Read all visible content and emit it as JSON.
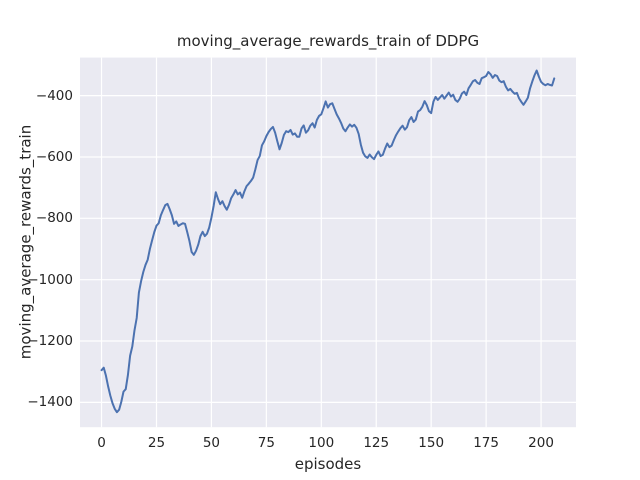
{
  "chart_data": {
    "type": "line",
    "title": "moving_average_rewards_train of DDPG",
    "xlabel": "episodes",
    "ylabel": "moving_average_rewards_train",
    "x_ticks": [
      0,
      25,
      50,
      75,
      100,
      125,
      150,
      175,
      200
    ],
    "y_ticks": [
      -400,
      -600,
      -800,
      -1000,
      -1200,
      -1400
    ],
    "xlim": [
      -9.8,
      215.9
    ],
    "ylim": [
      -1481,
      -276
    ],
    "grid": true,
    "legend": null,
    "colors": {
      "line": "#4c72b0",
      "plot_background": "#eaeaf2",
      "grid": "#ffffff",
      "figure_background": "#ffffff",
      "text": "#262626"
    },
    "series": [
      {
        "name": "moving_average_rewards_train",
        "color": "#4c72b0",
        "x_start": 0,
        "x_step": 1,
        "values": [
          -1295,
          -1287,
          -1313,
          -1348,
          -1378,
          -1403,
          -1421,
          -1432,
          -1424,
          -1398,
          -1365,
          -1357,
          -1311,
          -1248,
          -1218,
          -1165,
          -1125,
          -1042,
          -1005,
          -975,
          -952,
          -935,
          -900,
          -872,
          -845,
          -824,
          -816,
          -790,
          -773,
          -757,
          -753,
          -770,
          -790,
          -818,
          -810,
          -825,
          -820,
          -816,
          -818,
          -845,
          -874,
          -910,
          -919,
          -906,
          -886,
          -858,
          -844,
          -858,
          -850,
          -830,
          -798,
          -760,
          -715,
          -737,
          -754,
          -744,
          -760,
          -772,
          -756,
          -734,
          -722,
          -708,
          -722,
          -716,
          -733,
          -712,
          -695,
          -687,
          -678,
          -667,
          -640,
          -610,
          -597,
          -562,
          -549,
          -532,
          -519,
          -509,
          -502,
          -521,
          -549,
          -575,
          -554,
          -528,
          -516,
          -519,
          -512,
          -527,
          -523,
          -534,
          -534,
          -507,
          -497,
          -521,
          -513,
          -498,
          -490,
          -504,
          -479,
          -466,
          -461,
          -441,
          -419,
          -439,
          -428,
          -425,
          -443,
          -461,
          -474,
          -489,
          -507,
          -516,
          -504,
          -494,
          -501,
          -495,
          -505,
          -525,
          -560,
          -586,
          -598,
          -603,
          -592,
          -601,
          -607,
          -593,
          -582,
          -597,
          -593,
          -573,
          -556,
          -568,
          -563,
          -545,
          -529,
          -517,
          -506,
          -498,
          -511,
          -503,
          -480,
          -470,
          -486,
          -478,
          -452,
          -447,
          -436,
          -418,
          -431,
          -451,
          -457,
          -420,
          -404,
          -414,
          -406,
          -398,
          -410,
          -400,
          -390,
          -403,
          -397,
          -414,
          -420,
          -410,
          -393,
          -387,
          -398,
          -376,
          -365,
          -353,
          -349,
          -358,
          -362,
          -343,
          -340,
          -336,
          -323,
          -330,
          -342,
          -333,
          -336,
          -351,
          -356,
          -353,
          -371,
          -383,
          -378,
          -387,
          -394,
          -391,
          -409,
          -420,
          -430,
          -419,
          -407,
          -376,
          -354,
          -334,
          -318,
          -338,
          -355,
          -362,
          -366,
          -362,
          -365,
          -367,
          -344
        ]
      }
    ]
  }
}
